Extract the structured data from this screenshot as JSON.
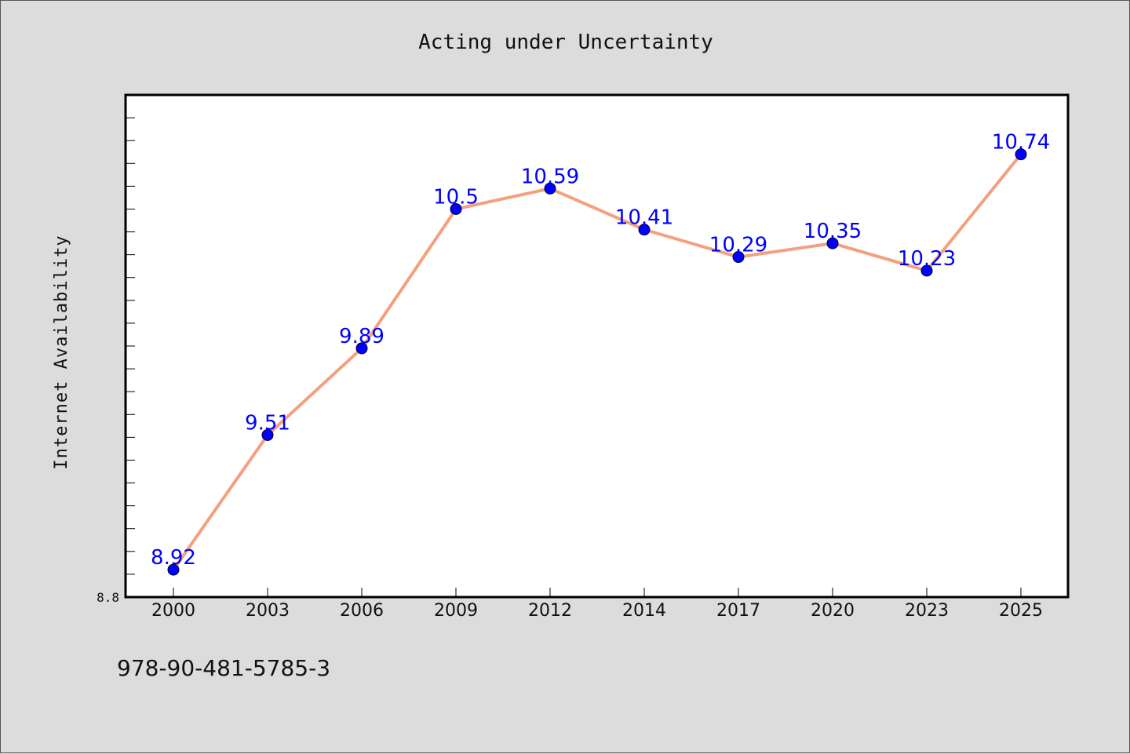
{
  "isbn": "978-90-481-5785-3",
  "chart_data": {
    "type": "line",
    "title": "Acting under Uncertainty",
    "xlabel": "",
    "ylabel": "Internet Availability",
    "categories": [
      "2000",
      "2003",
      "2006",
      "2009",
      "2012",
      "2014",
      "2017",
      "2020",
      "2023",
      "2025"
    ],
    "series": [
      {
        "values": [
          8.92,
          9.51,
          9.89,
          10.5,
          10.59,
          10.41,
          10.29,
          10.35,
          10.23,
          10.74
        ],
        "data_labels": [
          "8.92",
          "9.51",
          "9.89",
          "10.5",
          "10.59",
          "10.41",
          "10.29",
          "10.35",
          "10.23",
          "10.74"
        ],
        "line_color": "#f4a07f",
        "marker_color": "#0000ff"
      }
    ],
    "ylim": [
      8.8,
      11.0
    ],
    "y_tick_labels": [
      "8.8"
    ],
    "grid": false,
    "legend": "none",
    "colors": {
      "background": "#dcdcdc",
      "plot_background": "#ffffff",
      "data_label": "#0000ff"
    }
  }
}
